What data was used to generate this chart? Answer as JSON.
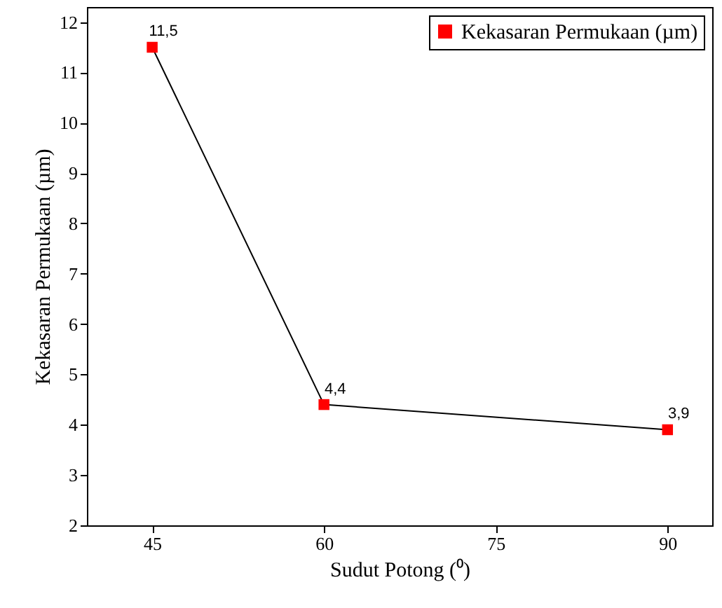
{
  "chart_data": {
    "type": "line",
    "xlabel": "Sudut Potong (⁰)",
    "ylabel": "Kekasaran Permukaan (µm)",
    "x": [
      45,
      60,
      90
    ],
    "series": [
      {
        "name": "Kekasaran Permukaan (µm)",
        "color": "#ff0000",
        "values": [
          11.5,
          4.4,
          3.9
        ],
        "value_labels": [
          "11,5",
          "4,4",
          "3,9"
        ]
      }
    ],
    "xlim": [
      39.3,
      93.9
    ],
    "xticks": [
      45,
      60,
      75,
      90
    ],
    "ylim": [
      2,
      12.3
    ],
    "yticks": [
      2,
      3,
      4,
      5,
      6,
      7,
      8,
      9,
      10,
      11,
      12
    ],
    "legend": "top right",
    "marker": "square",
    "line_style": "solid",
    "grid": false
  }
}
